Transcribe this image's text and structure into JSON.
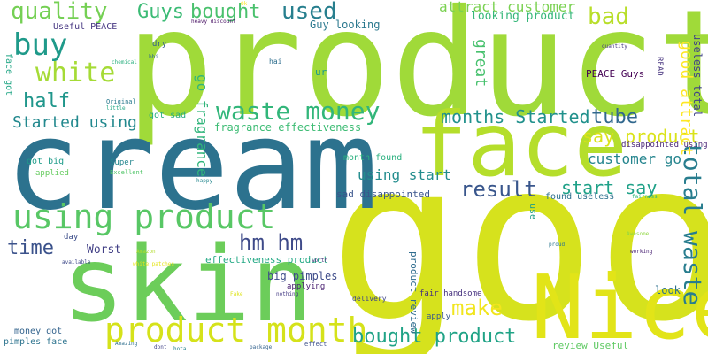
{
  "words": [
    {
      "text": "good",
      "color": "#d6e21d"
    },
    {
      "text": "product",
      "color": "#a0da39"
    },
    {
      "text": "cream",
      "color": "#2c728e"
    },
    {
      "text": "skin",
      "color": "#6ccd5a"
    },
    {
      "text": "Nice",
      "color": "#e2e418"
    },
    {
      "text": "face",
      "color": "#b5de2b"
    },
    {
      "text": "using product",
      "color": "#58c765"
    },
    {
      "text": "product month",
      "color": "#d5e21a"
    },
    {
      "text": "waste money",
      "color": "#32b67a"
    },
    {
      "text": "buy",
      "color": "#1f9a8a"
    },
    {
      "text": "white",
      "color": "#a5db36"
    },
    {
      "text": "quality",
      "color": "#75d054"
    },
    {
      "text": "Guys",
      "color": "#3bbb75"
    },
    {
      "text": "bought",
      "color": "#4ac16d"
    },
    {
      "text": "used",
      "color": "#277f8e"
    },
    {
      "text": "bad",
      "color": "#b8de29"
    },
    {
      "text": "attract customer",
      "color": "#7ad151"
    },
    {
      "text": "looking product",
      "color": "#35b779"
    },
    {
      "text": "half",
      "color": "#1f968b"
    },
    {
      "text": "Started using",
      "color": "#23898e"
    },
    {
      "text": "months Started",
      "color": "#21918c"
    },
    {
      "text": "tube",
      "color": "#31688e"
    },
    {
      "text": "say product",
      "color": "#dae319"
    },
    {
      "text": "result",
      "color": "#39568c"
    },
    {
      "text": "start say",
      "color": "#1fa188"
    },
    {
      "text": "customer go",
      "color": "#25858e"
    },
    {
      "text": "hm hm",
      "color": "#3e4a89"
    },
    {
      "text": "time",
      "color": "#3b528b"
    },
    {
      "text": "make",
      "color": "#f1e51d"
    },
    {
      "text": "bought product",
      "color": "#20a386"
    },
    {
      "text": "total waste",
      "color": "#287d8e"
    },
    {
      "text": "good attract",
      "color": "#fde725"
    },
    {
      "text": "great",
      "color": "#48c16e"
    },
    {
      "text": "go fragrance",
      "color": "#31b57b"
    },
    {
      "text": "using start",
      "color": "#228c8d"
    },
    {
      "text": "fragrance effectiveness",
      "color": "#3dbc74"
    },
    {
      "text": "useless total",
      "color": "#2a788e"
    },
    {
      "text": "Guy looking",
      "color": "#440154"
    },
    {
      "text": "PEACE Guys",
      "color": "#482475"
    },
    {
      "text": "disappointed using",
      "color": "#414487"
    },
    {
      "text": "READ",
      "color": "#46337e"
    },
    {
      "text": "Useful PEACE",
      "color": "#453581"
    },
    {
      "text": "face got",
      "color": "#21a685"
    },
    {
      "text": "got sad",
      "color": "#25ac82"
    },
    {
      "text": "got big",
      "color": "#1e9c89"
    },
    {
      "text": "month found",
      "color": "#2ab07f"
    },
    {
      "text": "sad disappointed",
      "color": "#3a548c"
    },
    {
      "text": "found useless",
      "color": "#2d708e"
    },
    {
      "text": "big pimples",
      "color": "#3e4c8a"
    },
    {
      "text": "effectiveness product",
      "color": "#22a884"
    },
    {
      "text": "Worst",
      "color": "#424086"
    },
    {
      "text": "applied",
      "color": "#65cb5e"
    },
    {
      "text": "money got",
      "color": "#33638d"
    },
    {
      "text": "pimples face",
      "color": "#2c738e"
    },
    {
      "text": "product review",
      "color": "#2f6c8e"
    },
    {
      "text": "fair handsome",
      "color": "#46317e"
    },
    {
      "text": "review Useful",
      "color": "#5ec962"
    },
    {
      "text": "apply",
      "color": "#38598c"
    },
    {
      "text": "applying",
      "color": "#481f70"
    },
    {
      "text": "delivery",
      "color": "#3f4788"
    },
    {
      "text": "look",
      "color": "#2d718e"
    },
    {
      "text": "use",
      "color": "#1f9e89"
    },
    {
      "text": "Excellent",
      "color": "#52c569"
    },
    {
      "text": "Super",
      "color": "#24878e"
    },
    {
      "text": "day",
      "color": "#3d4e8a"
    },
    {
      "text": "ur",
      "color": "#1e9b8a"
    },
    {
      "text": "hai",
      "color": "#2e6e8e"
    },
    {
      "text": "dry",
      "color": "#355f8d"
    },
    {
      "text": "best",
      "color": "#c2df23"
    },
    {
      "text": "Original",
      "color": "#29798e"
    },
    {
      "text": "Awesome",
      "color": "#90d743"
    },
    {
      "text": "working",
      "color": "#482173"
    },
    {
      "text": "worst",
      "color": "#404688"
    },
    {
      "text": "nothing",
      "color": "#443a83"
    },
    {
      "text": "Amazing",
      "color": "#2e6f8e"
    },
    {
      "text": "effect",
      "color": "#3c4f8a"
    },
    {
      "text": "package",
      "color": "#33628d"
    },
    {
      "text": "dont",
      "color": "#404387"
    },
    {
      "text": "quantity",
      "color": "#453882"
    },
    {
      "text": "chemical",
      "color": "#29af7f"
    },
    {
      "text": "heavy discount",
      "color": "#471063"
    },
    {
      "text": "Ok",
      "color": "#fde725"
    },
    {
      "text": "waste",
      "color": "#efe51c"
    },
    {
      "text": "available",
      "color": "#3e4989"
    },
    {
      "text": "white patches",
      "color": "#e5e419"
    },
    {
      "text": "Amazon",
      "color": "#b2dd2d"
    },
    {
      "text": "hota",
      "color": "#26818e"
    },
    {
      "text": "proud",
      "color": "#2a768e"
    },
    {
      "text": "bhi",
      "color": "#306a8e"
    },
    {
      "text": "little",
      "color": "#22a785"
    },
    {
      "text": "happy",
      "color": "#24878e"
    },
    {
      "text": "skin type",
      "color": "#addc30"
    },
    {
      "text": "worth",
      "color": "#472d7b"
    },
    {
      "text": "Fake",
      "color": "#dde318"
    },
    {
      "text": "fairness",
      "color": "#34b679"
    },
    {
      "text": "bought product",
      "color": "#a8db34"
    }
  ]
}
